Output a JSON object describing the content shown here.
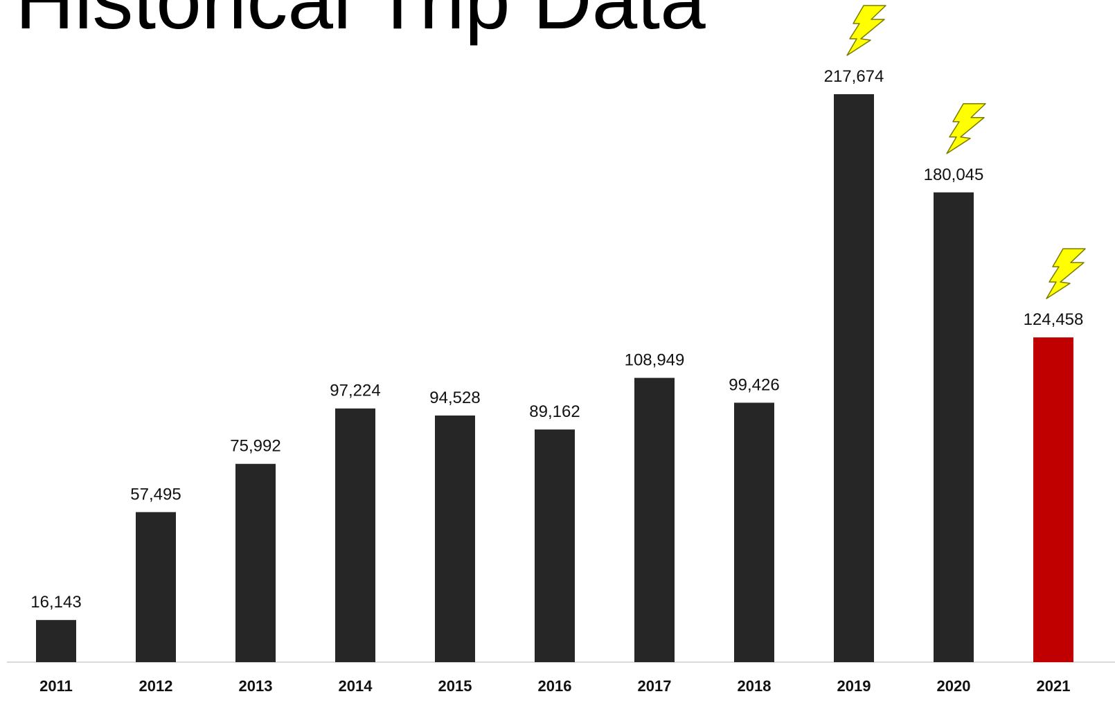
{
  "page": {
    "title": "Historical Trip Data"
  },
  "chart_data": {
    "type": "bar",
    "title": "",
    "xlabel": "",
    "ylabel": "",
    "categories": [
      "2011",
      "2012",
      "2013",
      "2014",
      "2015",
      "2016",
      "2017",
      "2018",
      "2019",
      "2020",
      "2021"
    ],
    "values": [
      16143,
      57495,
      75992,
      97224,
      94528,
      89162,
      108949,
      99426,
      217674,
      180045,
      124458
    ],
    "value_labels": [
      "16,143",
      "57,495",
      "75,992",
      "97,224",
      "94,528",
      "89,162",
      "108,949",
      "99,426",
      "217,674",
      "180,045",
      "124,458"
    ],
    "ylim": [
      0,
      217674
    ],
    "grid": false,
    "legend": "none",
    "bar_colors": [
      "#262626",
      "#262626",
      "#262626",
      "#262626",
      "#262626",
      "#262626",
      "#262626",
      "#262626",
      "#262626",
      "#262626",
      "#C00000"
    ],
    "baseline_color": "#D9D9D9",
    "lightning_marked_categories": [
      "2019",
      "2020",
      "2021"
    ],
    "lightning_icon_color": "#FFFF00"
  }
}
